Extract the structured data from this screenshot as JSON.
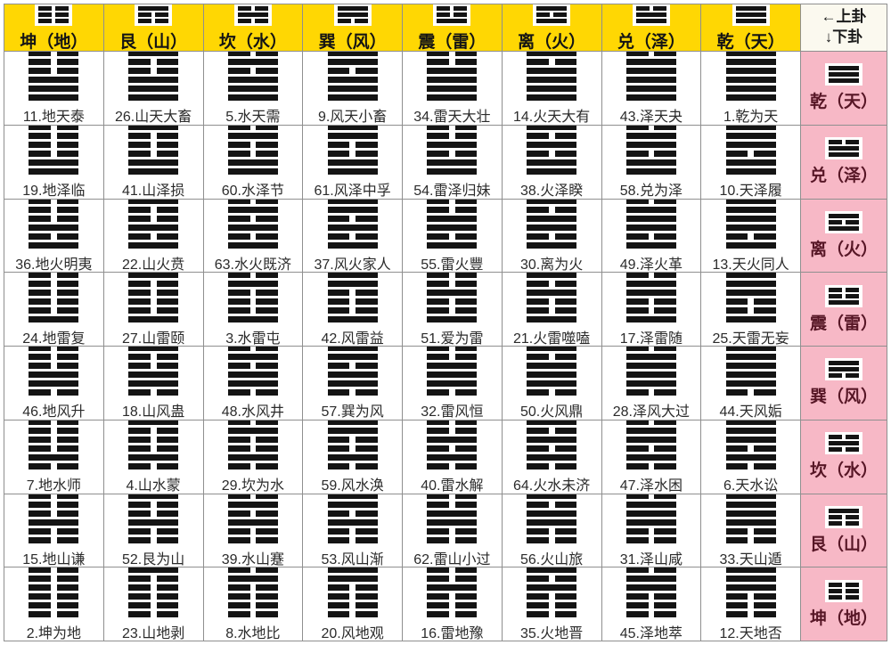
{
  "chart_data": {
    "type": "table",
    "title": "八卦六十四卦对照表",
    "corner": {
      "line1": "←上卦",
      "line2": "↓下卦"
    },
    "colors": {
      "header_bg": "#ffd703",
      "rowhead_bg": "#f7b8c6",
      "rowhead_text": "#571626",
      "grid_line": "#8f8f8f",
      "line_color": "#141414",
      "cell_text": "#2b2b2b"
    },
    "trigrams": {
      "qian": [
        1,
        1,
        1
      ],
      "dui": [
        0,
        1,
        1
      ],
      "li": [
        1,
        0,
        1
      ],
      "zhen": [
        0,
        0,
        1
      ],
      "xun": [
        1,
        1,
        0
      ],
      "kan": [
        0,
        1,
        0
      ],
      "gen": [
        1,
        0,
        0
      ],
      "kun": [
        0,
        0,
        0
      ]
    },
    "columns": [
      {
        "key": "kun",
        "label": "坤（地）"
      },
      {
        "key": "gen",
        "label": "艮（山）"
      },
      {
        "key": "kan",
        "label": "坎（水）"
      },
      {
        "key": "xun",
        "label": "巽（风）"
      },
      {
        "key": "zhen",
        "label": "震（雷）"
      },
      {
        "key": "li",
        "label": "离（火）"
      },
      {
        "key": "dui",
        "label": "兑（泽）"
      },
      {
        "key": "qian",
        "label": "乾（天）"
      }
    ],
    "rows": [
      {
        "key": "qian",
        "label": "乾（天）",
        "cells": [
          "11.地天泰",
          "26.山天大畜",
          "5.水天需",
          "9.风天小畜",
          "34.雷天大壮",
          "14.火天大有",
          "43.泽天夬",
          "1.乾为天"
        ]
      },
      {
        "key": "dui",
        "label": "兑（泽）",
        "cells": [
          "19.地泽临",
          "41.山泽损",
          "60.水泽节",
          "61.风泽中孚",
          "54.雷泽归妹",
          "38.火泽睽",
          "58.兑为泽",
          "10.天泽履"
        ]
      },
      {
        "key": "li",
        "label": "离（火）",
        "cells": [
          "36.地火明夷",
          "22.山火贲",
          "63.水火既济",
          "37.风火家人",
          "55.雷火豐",
          "30.离为火",
          "49.泽火革",
          "13.天火同人"
        ]
      },
      {
        "key": "zhen",
        "label": "震（雷）",
        "cells": [
          "24.地雷复",
          "27.山雷颐",
          "3.水雷屯",
          "42.风雷益",
          "51.爱为雷",
          "21.火雷噬嗑",
          "17.泽雷随",
          "25.天雷无妄"
        ]
      },
      {
        "key": "xun",
        "label": "巽（风）",
        "cells": [
          "46.地风升",
          "18.山风蛊",
          "48.水风井",
          "57.巽为风",
          "32.雷风恒",
          "50.火风鼎",
          "28.泽风大过",
          "44.天风姤"
        ]
      },
      {
        "key": "kan",
        "label": "坎（水）",
        "cells": [
          "7.地水师",
          "4.山水蒙",
          "29.坎为水",
          "59.风水涣",
          "40.雷水解",
          "64.火水未济",
          "47.泽水困",
          "6.天水讼"
        ]
      },
      {
        "key": "gen",
        "label": "艮（山）",
        "cells": [
          "15.地山谦",
          "52.艮为山",
          "39.水山蹇",
          "53.风山渐",
          "62.雷山小过",
          "56.火山旅",
          "31.泽山咸",
          "33.天山遁"
        ]
      },
      {
        "key": "kun",
        "label": "坤（地）",
        "cells": [
          "2.坤为地",
          "23.山地剥",
          "8.水地比",
          "20.风地观",
          "16.雷地豫",
          "35.火地晋",
          "45.泽地萃",
          "12.天地否"
        ]
      }
    ]
  }
}
